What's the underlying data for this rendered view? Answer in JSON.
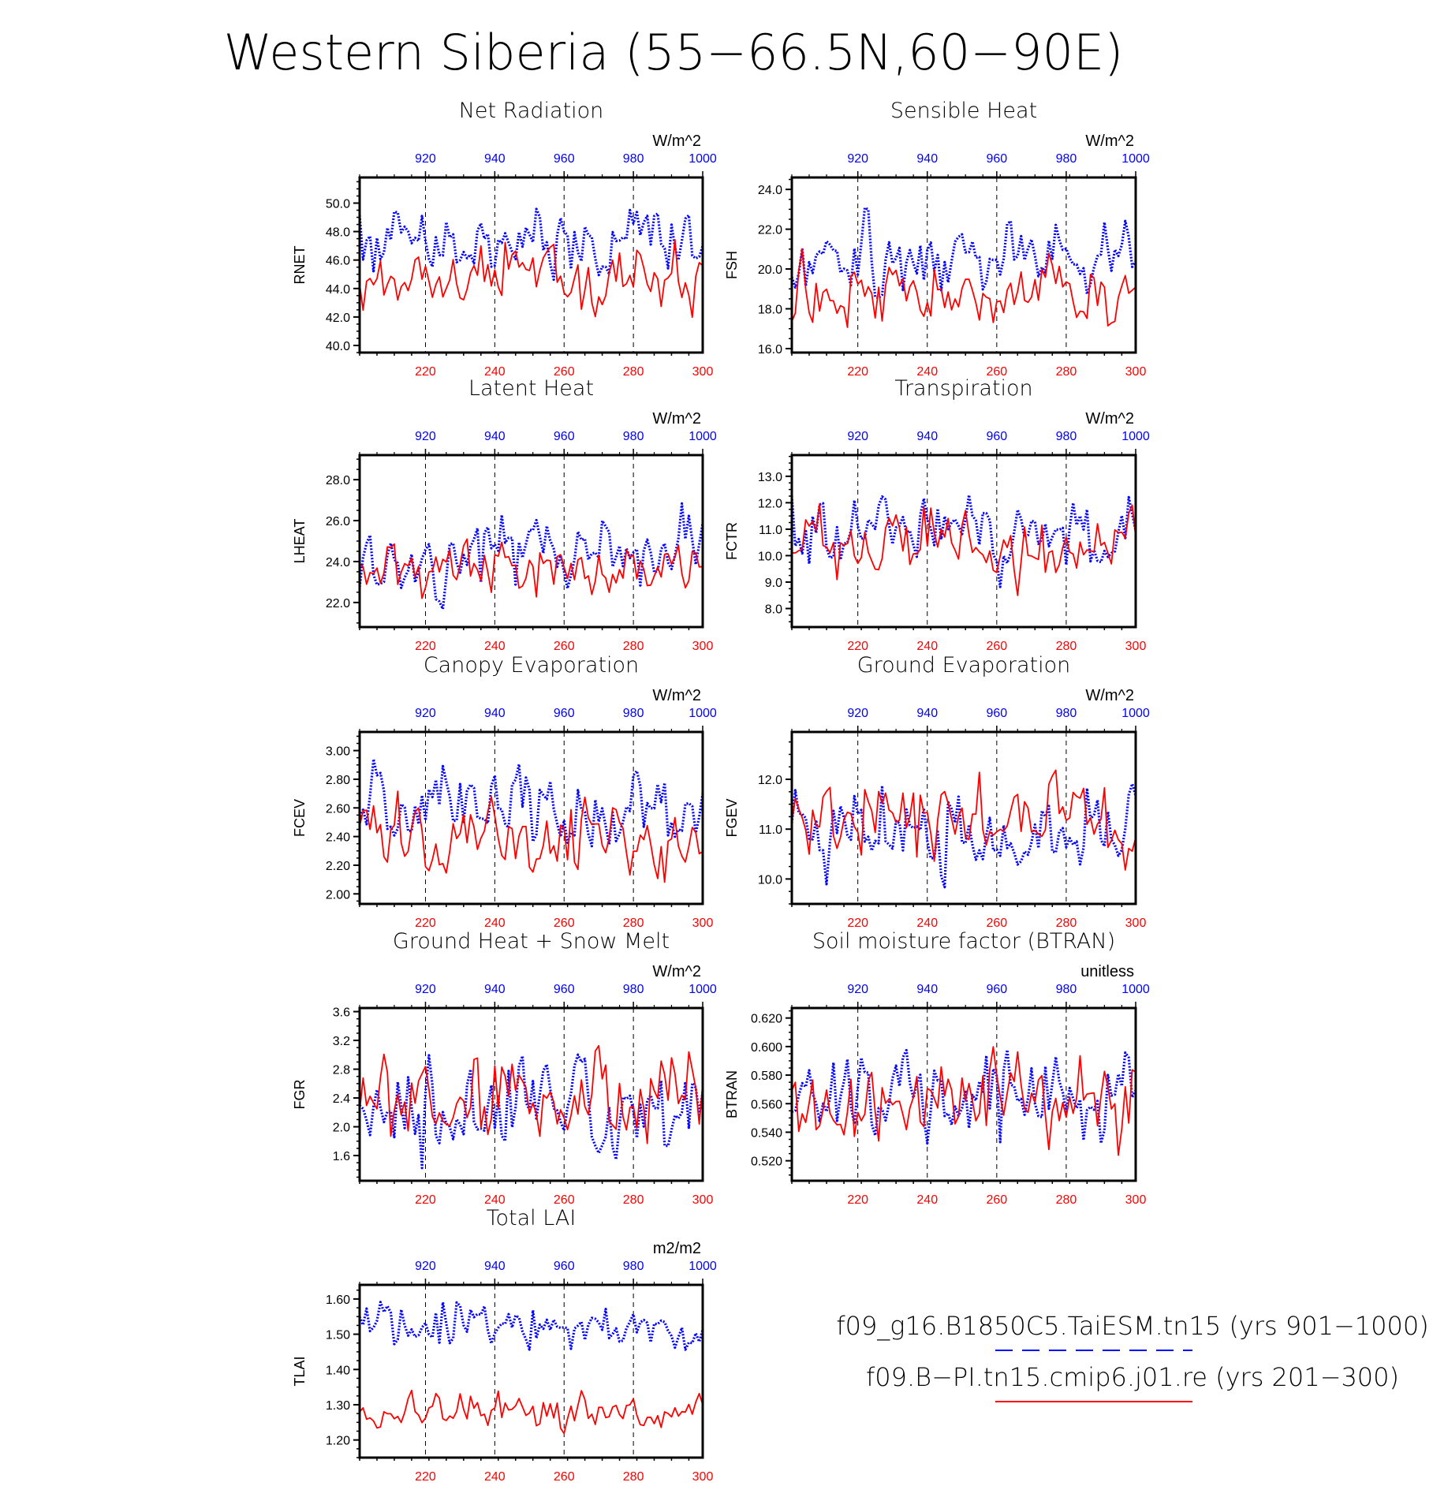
{
  "figure": {
    "title": "Western Siberia (55−66.5N,60−90E)",
    "colors": {
      "run1": "#0000ff",
      "run2": "#ff0000",
      "axes": "#000000"
    }
  },
  "legend": {
    "entries": [
      {
        "label": "f09_g16.B1850C5.TaiESM.tn15 (yrs 901−1000)",
        "color": "#0000ff",
        "style": "dashed"
      },
      {
        "label": "f09.B−PI.tn15.cmip6.j01.re (yrs 201−300)",
        "color": "#ff0000",
        "style": "solid"
      }
    ]
  },
  "chart_data": [
    {
      "type": "line",
      "title": "Net Radiation",
      "ylabel": "RNET",
      "units": "W/m^2",
      "ylim": [
        39.5,
        51.8
      ],
      "yticks": [
        "40.0",
        "42.0",
        "44.0",
        "46.0",
        "48.0",
        "50.0"
      ],
      "x_bottom": {
        "range": [
          201,
          300
        ],
        "ticks": [
          "220",
          "240",
          "260",
          "280",
          "300"
        ],
        "color": "#ff0000"
      },
      "x_top": {
        "range": [
          901,
          1000
        ],
        "ticks": [
          "920",
          "940",
          "960",
          "980",
          "1000"
        ],
        "color": "#0000ff"
      },
      "series": [
        {
          "axis": "top",
          "color": "#0000ff",
          "style": "dashed",
          "mean": 47.0,
          "amp": 1.5,
          "seed": 11
        },
        {
          "axis": "bottom",
          "color": "#ff0000",
          "style": "solid",
          "mean": 45.2,
          "amp": 1.4,
          "seed": 12
        }
      ]
    },
    {
      "type": "line",
      "title": "Sensible Heat",
      "ylabel": "FSH",
      "units": "W/m^2",
      "ylim": [
        15.8,
        24.6
      ],
      "yticks": [
        "16.0",
        "18.0",
        "20.0",
        "22.0",
        "24.0"
      ],
      "x_bottom": {
        "range": [
          201,
          300
        ],
        "ticks": [
          "220",
          "240",
          "260",
          "280",
          "300"
        ],
        "color": "#ff0000"
      },
      "x_top": {
        "range": [
          901,
          1000
        ],
        "ticks": [
          "920",
          "940",
          "960",
          "980",
          "1000"
        ],
        "color": "#0000ff"
      },
      "series": [
        {
          "axis": "top",
          "color": "#0000ff",
          "style": "dashed",
          "mean": 20.7,
          "amp": 1.2,
          "seed": 21
        },
        {
          "axis": "bottom",
          "color": "#ff0000",
          "style": "solid",
          "mean": 18.9,
          "amp": 1.1,
          "seed": 22
        }
      ]
    },
    {
      "type": "line",
      "title": "Latent Heat",
      "ylabel": "LHEAT",
      "units": "W/m^2",
      "ylim": [
        20.8,
        29.2
      ],
      "yticks": [
        "22.0",
        "24.0",
        "26.0",
        "28.0"
      ],
      "x_bottom": {
        "range": [
          201,
          300
        ],
        "ticks": [
          "220",
          "240",
          "260",
          "280",
          "300"
        ],
        "color": "#ff0000"
      },
      "x_top": {
        "range": [
          901,
          1000
        ],
        "ticks": [
          "920",
          "940",
          "960",
          "980",
          "1000"
        ],
        "color": "#0000ff"
      },
      "series": [
        {
          "axis": "top",
          "color": "#0000ff",
          "style": "dashed",
          "mean": 24.3,
          "amp": 1.1,
          "seed": 31
        },
        {
          "axis": "bottom",
          "color": "#ff0000",
          "style": "solid",
          "mean": 23.9,
          "amp": 0.9,
          "seed": 32
        }
      ]
    },
    {
      "type": "line",
      "title": "Transpiration",
      "ylabel": "FCTR",
      "units": "W/m^2",
      "ylim": [
        7.3,
        13.8
      ],
      "yticks": [
        "8.0",
        "9.0",
        "10.0",
        "11.0",
        "12.0",
        "13.0"
      ],
      "x_bottom": {
        "range": [
          201,
          300
        ],
        "ticks": [
          "220",
          "240",
          "260",
          "280",
          "300"
        ],
        "color": "#ff0000"
      },
      "x_top": {
        "range": [
          901,
          1000
        ],
        "ticks": [
          "920",
          "940",
          "960",
          "980",
          "1000"
        ],
        "color": "#0000ff"
      },
      "series": [
        {
          "axis": "top",
          "color": "#0000ff",
          "style": "dashed",
          "mean": 11.0,
          "amp": 0.8,
          "seed": 41
        },
        {
          "axis": "bottom",
          "color": "#ff0000",
          "style": "solid",
          "mean": 10.5,
          "amp": 0.8,
          "seed": 42
        }
      ]
    },
    {
      "type": "line",
      "title": "Canopy Evaporation",
      "ylabel": "FCEV",
      "units": "W/m^2",
      "ylim": [
        1.93,
        3.13
      ],
      "yticks": [
        "2.00",
        "2.20",
        "2.40",
        "2.60",
        "2.80",
        "3.00"
      ],
      "x_bottom": {
        "range": [
          201,
          300
        ],
        "ticks": [
          "220",
          "240",
          "260",
          "280",
          "300"
        ],
        "color": "#ff0000"
      },
      "x_top": {
        "range": [
          901,
          1000
        ],
        "ticks": [
          "920",
          "940",
          "960",
          "980",
          "1000"
        ],
        "color": "#0000ff"
      },
      "series": [
        {
          "axis": "top",
          "color": "#0000ff",
          "style": "dashed",
          "mean": 2.6,
          "amp": 0.16,
          "seed": 51
        },
        {
          "axis": "bottom",
          "color": "#ff0000",
          "style": "solid",
          "mean": 2.38,
          "amp": 0.15,
          "seed": 52
        }
      ]
    },
    {
      "type": "line",
      "title": "Ground Evaporation",
      "ylabel": "FGEV",
      "units": "W/m^2",
      "ylim": [
        9.5,
        12.95
      ],
      "yticks": [
        "10.0",
        "11.0",
        "12.0"
      ],
      "x_bottom": {
        "range": [
          201,
          300
        ],
        "ticks": [
          "220",
          "240",
          "260",
          "280",
          "300"
        ],
        "color": "#ff0000"
      },
      "x_top": {
        "range": [
          901,
          1000
        ],
        "ticks": [
          "920",
          "940",
          "960",
          "980",
          "1000"
        ],
        "color": "#0000ff"
      },
      "series": [
        {
          "axis": "top",
          "color": "#0000ff",
          "style": "dashed",
          "mean": 10.95,
          "amp": 0.5,
          "seed": 61
        },
        {
          "axis": "bottom",
          "color": "#ff0000",
          "style": "solid",
          "mean": 11.2,
          "amp": 0.45,
          "seed": 62
        }
      ]
    },
    {
      "type": "line",
      "title": "Ground Heat + Snow Melt",
      "ylabel": "FGR",
      "units": "W/m^2",
      "ylim": [
        1.25,
        3.65
      ],
      "yticks": [
        "1.6",
        "2.0",
        "2.4",
        "2.8",
        "3.2",
        "3.6"
      ],
      "x_bottom": {
        "range": [
          201,
          300
        ],
        "ticks": [
          "220",
          "240",
          "260",
          "280",
          "300"
        ],
        "color": "#ff0000"
      },
      "x_top": {
        "range": [
          901,
          1000
        ],
        "ticks": [
          "920",
          "940",
          "960",
          "980",
          "1000"
        ],
        "color": "#0000ff"
      },
      "series": [
        {
          "axis": "top",
          "color": "#0000ff",
          "style": "dashed",
          "mean": 2.35,
          "amp": 0.38,
          "seed": 71
        },
        {
          "axis": "bottom",
          "color": "#ff0000",
          "style": "solid",
          "mean": 2.45,
          "amp": 0.38,
          "seed": 72
        }
      ]
    },
    {
      "type": "line",
      "title": "Soil moisture factor (BTRAN)",
      "ylabel": "BTRAN",
      "units": "unitless",
      "ylim": [
        0.506,
        0.627
      ],
      "yticks": [
        "0.520",
        "0.540",
        "0.560",
        "0.580",
        "0.600",
        "0.620"
      ],
      "x_bottom": {
        "range": [
          201,
          300
        ],
        "ticks": [
          "220",
          "240",
          "260",
          "280",
          "300"
        ],
        "color": "#ff0000"
      },
      "x_top": {
        "range": [
          901,
          1000
        ],
        "ticks": [
          "920",
          "940",
          "960",
          "980",
          "1000"
        ],
        "color": "#0000ff"
      },
      "series": [
        {
          "axis": "top",
          "color": "#0000ff",
          "style": "dashed",
          "mean": 0.565,
          "amp": 0.017,
          "seed": 81
        },
        {
          "axis": "bottom",
          "color": "#ff0000",
          "style": "solid",
          "mean": 0.56,
          "amp": 0.018,
          "seed": 82
        }
      ]
    },
    {
      "type": "line",
      "title": "Total LAI",
      "ylabel": "TLAI",
      "units": "m2/m2",
      "ylim": [
        1.15,
        1.64
      ],
      "yticks": [
        "1.20",
        "1.30",
        "1.40",
        "1.50",
        "1.60"
      ],
      "x_bottom": {
        "range": [
          201,
          300
        ],
        "ticks": [
          "220",
          "240",
          "260",
          "280",
          "300"
        ],
        "color": "#ff0000"
      },
      "x_top": {
        "range": [
          901,
          1000
        ],
        "ticks": [
          "920",
          "940",
          "960",
          "980",
          "1000"
        ],
        "color": "#0000ff"
      },
      "series": [
        {
          "axis": "top",
          "color": "#0000ff",
          "style": "dashed",
          "mean": 1.53,
          "amp": 0.04,
          "seed": 91
        },
        {
          "axis": "bottom",
          "color": "#ff0000",
          "style": "solid",
          "mean": 1.27,
          "amp": 0.035,
          "seed": 92
        }
      ]
    }
  ]
}
